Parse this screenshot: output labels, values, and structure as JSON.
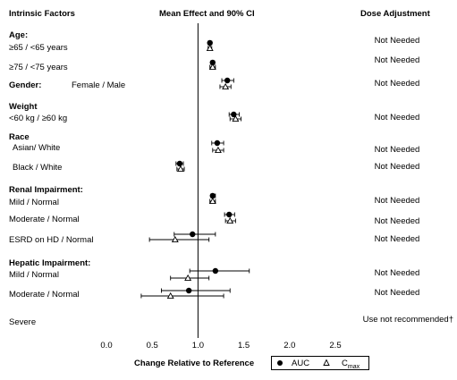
{
  "headers": {
    "factors": "Intrinsic Factors",
    "effect": "Mean Effect and 90% CI",
    "dose": "Dose Adjustment"
  },
  "rows": [
    {
      "group": "Age:",
      "label": "≥65 / <65 years",
      "dose": "Not Needed"
    },
    {
      "group": "",
      "label": "≥75 / <75 years",
      "dose": "Not Needed"
    },
    {
      "group": "Gender:",
      "label": "Female / Male",
      "dose": "Not Needed"
    },
    {
      "group": "Weight",
      "label": "<60 kg / ≥60 kg",
      "dose": "Not Needed"
    },
    {
      "group": "Race",
      "label": "Asian/  White",
      "dose": "Not Needed"
    },
    {
      "group": "",
      "label": "Black / White",
      "dose": "Not Needed"
    },
    {
      "group": "Renal Impairment:",
      "label": "Mild / Normal",
      "dose": "Not Needed"
    },
    {
      "group": "",
      "label": "Moderate / Normal",
      "dose": "Not Needed"
    },
    {
      "group": "",
      "label": "ESRD on HD / Normal",
      "dose": "Not Needed"
    },
    {
      "group": "Hepatic Impairment:",
      "label": "Mild / Normal",
      "dose": "Not Needed"
    },
    {
      "group": "",
      "label": "Moderate / Normal",
      "dose": "Not Needed"
    },
    {
      "group": "",
      "label": "Severe",
      "dose": "Use not recommended†"
    }
  ],
  "chart_data": {
    "type": "scatter",
    "xlabel": "Change Relative to Reference",
    "xlim": [
      -0.2,
      2.6
    ],
    "xticks": [
      "0.0",
      "0.5",
      "1.0",
      "1.5",
      "2.0",
      "2.5"
    ],
    "reference_line": 1.0,
    "series": [
      {
        "name": "AUC",
        "marker": "filled-circle",
        "values": [
          1.13,
          1.16,
          1.32,
          1.39,
          1.21,
          0.8,
          1.16,
          1.34,
          0.94,
          1.19,
          0.9,
          null
        ],
        "ci_low": [
          1.11,
          1.14,
          1.26,
          1.34,
          1.15,
          0.76,
          1.14,
          1.29,
          0.74,
          0.91,
          0.6,
          null
        ],
        "ci_high": [
          1.15,
          1.18,
          1.39,
          1.45,
          1.28,
          0.84,
          1.19,
          1.4,
          1.19,
          1.56,
          1.35,
          null
        ]
      },
      {
        "name": "C",
        "sub": "max",
        "marker": "open-triangle",
        "values": [
          1.13,
          1.16,
          1.3,
          1.41,
          1.22,
          0.81,
          1.16,
          1.35,
          0.75,
          0.89,
          0.7,
          null
        ],
        "ci_low": [
          1.11,
          1.13,
          1.24,
          1.35,
          1.16,
          0.77,
          1.13,
          1.3,
          0.47,
          0.7,
          0.38,
          null
        ],
        "ci_high": [
          1.15,
          1.19,
          1.36,
          1.47,
          1.28,
          0.85,
          1.19,
          1.41,
          1.12,
          1.12,
          1.28,
          null
        ]
      }
    ]
  }
}
